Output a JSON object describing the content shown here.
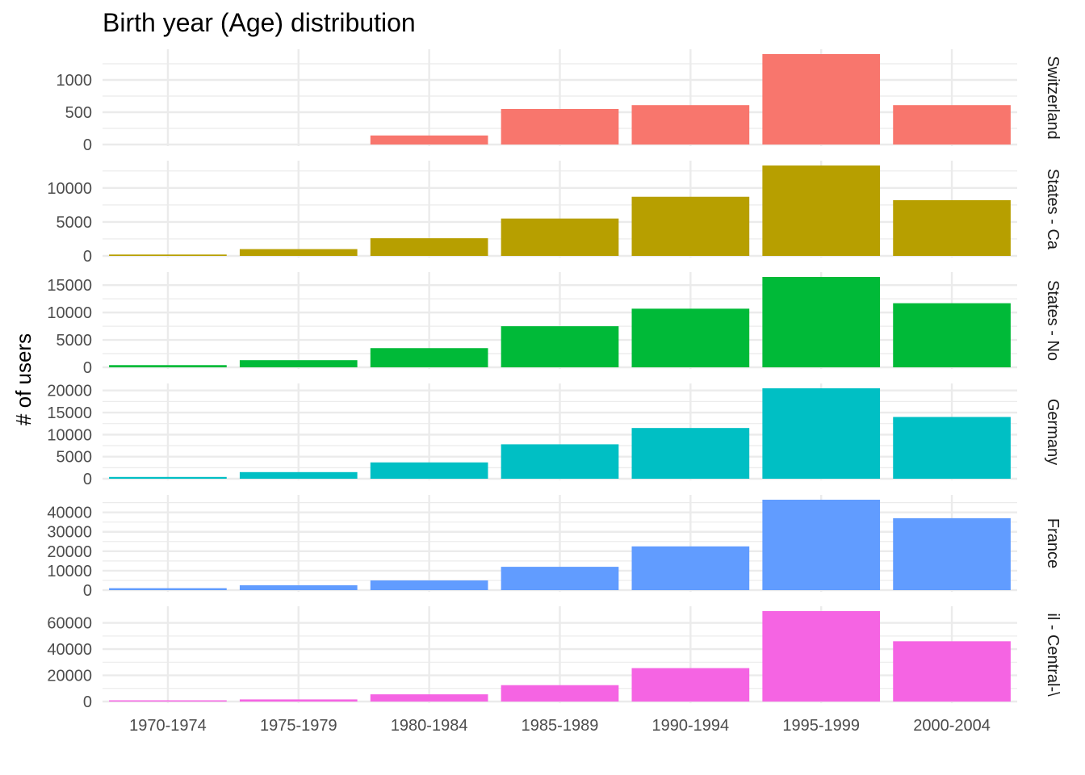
{
  "chart_data": {
    "type": "bar",
    "title": "Birth year (Age) distribution",
    "xlabel": "",
    "ylabel": "# of users",
    "categories": [
      "1970-1974",
      "1975-1979",
      "1980-1984",
      "1985-1989",
      "1990-1994",
      "1995-1999",
      "2000-2004"
    ],
    "grid": true,
    "legend": "none",
    "facets": [
      {
        "strip_label": "Switzerland",
        "color": "#F8766D",
        "values": [
          0,
          0,
          140,
          550,
          610,
          1400,
          610
        ],
        "ylim": [
          0,
          1400
        ],
        "yticks": [
          0,
          500,
          1000
        ]
      },
      {
        "strip_label": "States - Ca",
        "color": "#B79F00",
        "values": [
          200,
          1000,
          2600,
          5500,
          8700,
          13300,
          8200
        ],
        "ylim": [
          0,
          13300
        ],
        "yticks": [
          0,
          5000,
          10000
        ]
      },
      {
        "strip_label": "States - No",
        "color": "#00BA38",
        "values": [
          400,
          1300,
          3500,
          7500,
          10700,
          16500,
          11700
        ],
        "ylim": [
          0,
          16500
        ],
        "yticks": [
          0,
          5000,
          10000,
          15000
        ]
      },
      {
        "strip_label": "Germany",
        "color": "#00BFC4",
        "values": [
          400,
          1500,
          3700,
          7800,
          11500,
          20500,
          14000
        ],
        "ylim": [
          0,
          20500
        ],
        "yticks": [
          0,
          5000,
          10000,
          15000,
          20000
        ]
      },
      {
        "strip_label": "France",
        "color": "#619CFF",
        "values": [
          1000,
          2500,
          5000,
          12000,
          22500,
          46500,
          37000
        ],
        "ylim": [
          0,
          46500
        ],
        "yticks": [
          0,
          10000,
          20000,
          30000,
          40000
        ]
      },
      {
        "strip_label": "il - Central-\\",
        "color": "#F564E3",
        "values": [
          600,
          1600,
          5500,
          12500,
          25500,
          69000,
          46000
        ],
        "ylim": [
          0,
          69000
        ],
        "yticks": [
          0,
          20000,
          40000,
          60000
        ]
      }
    ]
  }
}
